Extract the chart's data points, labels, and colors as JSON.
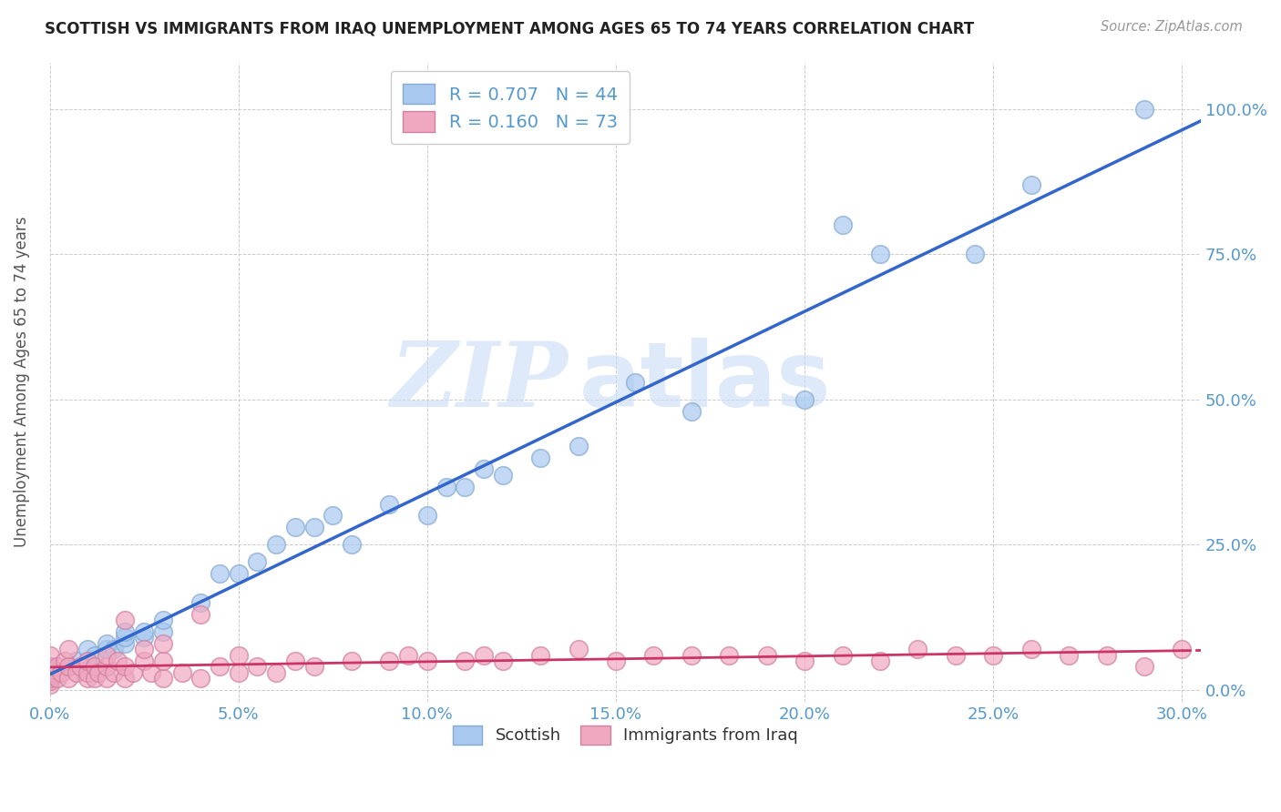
{
  "title": "SCOTTISH VS IMMIGRANTS FROM IRAQ UNEMPLOYMENT AMONG AGES 65 TO 74 YEARS CORRELATION CHART",
  "source": "Source: ZipAtlas.com",
  "ylabel": "Unemployment Among Ages 65 to 74 years",
  "xlim": [
    0.0,
    0.305
  ],
  "ylim": [
    -0.02,
    1.08
  ],
  "scottish_color": "#a8c8f0",
  "scottish_edge_color": "#85aad0",
  "scottish_line_color": "#3366cc",
  "iraq_color": "#f0a8c0",
  "iraq_edge_color": "#d080a0",
  "iraq_line_color": "#cc3366",
  "scottish_R": 0.707,
  "scottish_N": 44,
  "iraq_R": 0.16,
  "iraq_N": 73,
  "scottish_x": [
    0.0,
    0.0,
    0.0,
    0.002,
    0.005,
    0.007,
    0.01,
    0.01,
    0.012,
    0.015,
    0.015,
    0.017,
    0.02,
    0.02,
    0.02,
    0.025,
    0.025,
    0.03,
    0.03,
    0.04,
    0.045,
    0.05,
    0.055,
    0.06,
    0.065,
    0.07,
    0.075,
    0.08,
    0.09,
    0.1,
    0.105,
    0.11,
    0.115,
    0.12,
    0.13,
    0.14,
    0.155,
    0.17,
    0.2,
    0.21,
    0.22,
    0.245,
    0.26,
    0.29
  ],
  "scottish_y": [
    0.02,
    0.03,
    0.04,
    0.03,
    0.04,
    0.05,
    0.05,
    0.07,
    0.06,
    0.07,
    0.08,
    0.07,
    0.08,
    0.09,
    0.1,
    0.09,
    0.1,
    0.1,
    0.12,
    0.15,
    0.2,
    0.2,
    0.22,
    0.25,
    0.28,
    0.28,
    0.3,
    0.25,
    0.32,
    0.3,
    0.35,
    0.35,
    0.38,
    0.37,
    0.4,
    0.42,
    0.53,
    0.48,
    0.5,
    0.8,
    0.75,
    0.75,
    0.87,
    1.0
  ],
  "iraq_x": [
    0.0,
    0.0,
    0.0,
    0.0,
    0.0,
    0.0,
    0.0,
    0.0,
    0.002,
    0.002,
    0.003,
    0.004,
    0.005,
    0.005,
    0.005,
    0.007,
    0.008,
    0.01,
    0.01,
    0.01,
    0.012,
    0.012,
    0.013,
    0.015,
    0.015,
    0.015,
    0.017,
    0.018,
    0.02,
    0.02,
    0.02,
    0.022,
    0.025,
    0.025,
    0.027,
    0.03,
    0.03,
    0.03,
    0.035,
    0.04,
    0.04,
    0.045,
    0.05,
    0.05,
    0.055,
    0.06,
    0.065,
    0.07,
    0.08,
    0.09,
    0.095,
    0.1,
    0.11,
    0.115,
    0.12,
    0.13,
    0.14,
    0.15,
    0.16,
    0.17,
    0.18,
    0.19,
    0.2,
    0.21,
    0.22,
    0.23,
    0.24,
    0.25,
    0.26,
    0.27,
    0.28,
    0.29,
    0.3
  ],
  "iraq_y": [
    0.01,
    0.015,
    0.02,
    0.025,
    0.03,
    0.035,
    0.04,
    0.06,
    0.02,
    0.04,
    0.03,
    0.05,
    0.02,
    0.04,
    0.07,
    0.03,
    0.04,
    0.02,
    0.03,
    0.05,
    0.02,
    0.04,
    0.03,
    0.02,
    0.04,
    0.06,
    0.03,
    0.05,
    0.02,
    0.04,
    0.12,
    0.03,
    0.05,
    0.07,
    0.03,
    0.02,
    0.05,
    0.08,
    0.03,
    0.02,
    0.13,
    0.04,
    0.03,
    0.06,
    0.04,
    0.03,
    0.05,
    0.04,
    0.05,
    0.05,
    0.06,
    0.05,
    0.05,
    0.06,
    0.05,
    0.06,
    0.07,
    0.05,
    0.06,
    0.06,
    0.06,
    0.06,
    0.05,
    0.06,
    0.05,
    0.07,
    0.06,
    0.06,
    0.07,
    0.06,
    0.06,
    0.04,
    0.07
  ],
  "watermark_zip": "ZIP",
  "watermark_atlas": "atlas",
  "background_color": "#ffffff",
  "grid_color": "#cccccc",
  "tick_color": "#5599cc",
  "scatter_size": 200
}
